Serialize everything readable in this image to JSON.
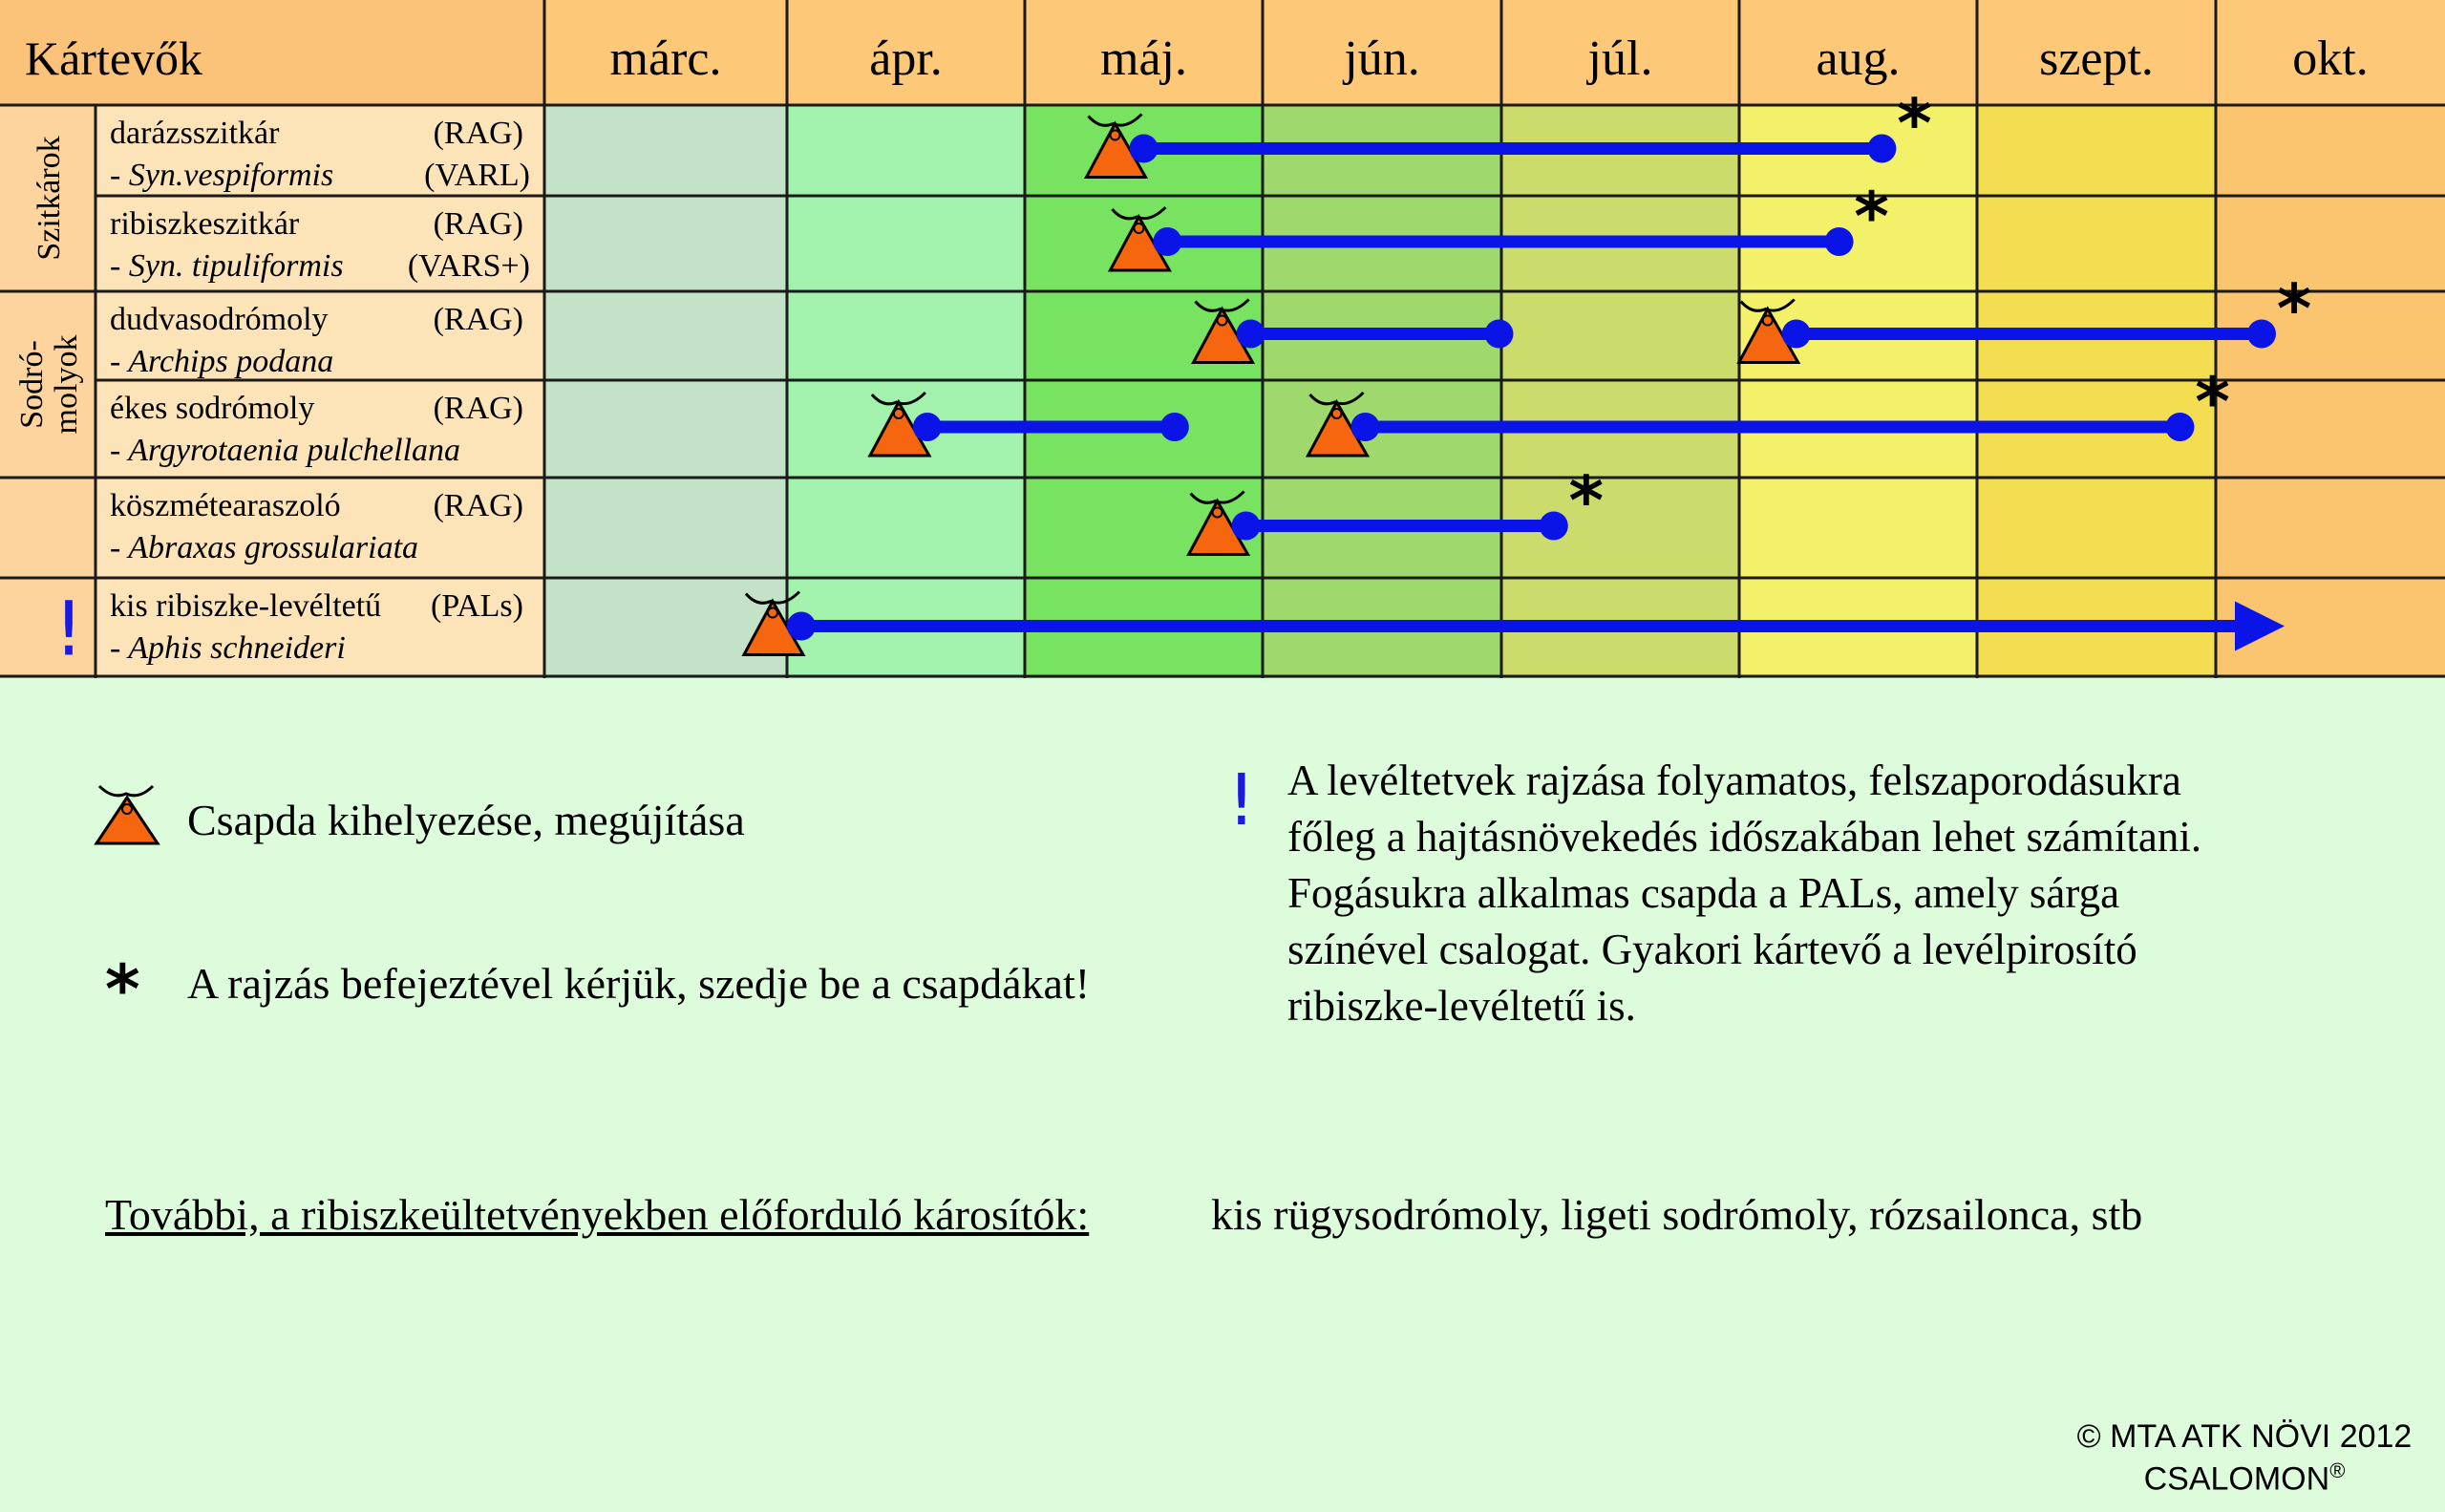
{
  "header": {
    "title": "Kártevők"
  },
  "months": [
    "márc.",
    "ápr.",
    "máj.",
    "jún.",
    "júl.",
    "aug.",
    "szept.",
    "okt."
  ],
  "colors": {
    "header_bg": "#fdc979",
    "left_header_bg": "#fbc27a",
    "group_bg": "#fdd49e",
    "name_bg": "#fde3b8",
    "month_bg": [
      "#c3e2c8",
      "#a2f1ad",
      "#78e261",
      "#9fd86c",
      "#cbdc6c",
      "#f3f16a",
      "#f2de50",
      "#fbc46e"
    ],
    "bar": "#0a14e6",
    "trap": "#f5660e",
    "exclaim": "#1a1ae0"
  },
  "groups": [
    {
      "label": "Szitkárok",
      "rows": [
        0,
        1
      ]
    },
    {
      "label": "Sodró-\nmolyok",
      "rows": [
        2,
        3
      ]
    },
    {
      "label": "",
      "rows": [
        4
      ]
    },
    {
      "label": "!",
      "rows": [
        5
      ]
    }
  ],
  "rows": [
    {
      "name": "darázsszitkár",
      "trap": "(RAG)",
      "latin": "- Syn.vespiformis",
      "trap2": "(VARL)",
      "flights": [
        {
          "start": 2.5,
          "end": 5.6,
          "star": true,
          "arrow": false
        }
      ]
    },
    {
      "name": "ribiszkeszitkár",
      "trap": "(RAG)",
      "latin": "- Syn. tipuliformis",
      "trap2": "(VARS+)",
      "flights": [
        {
          "start": 2.6,
          "end": 5.42,
          "star": true,
          "arrow": false
        }
      ]
    },
    {
      "name": "dudvasodrómoly",
      "trap": "(RAG)",
      "latin": "- Archips podana",
      "trap2": "",
      "flights": [
        {
          "start": 2.95,
          "end": 3.99,
          "star": false,
          "arrow": false
        },
        {
          "start": 5.24,
          "end": 7.2,
          "star": true,
          "arrow": false
        }
      ]
    },
    {
      "name": "ékes sodrómoly",
      "trap": "(RAG)",
      "latin": "- Argyrotaenia pulchellana",
      "trap2": "",
      "flights": [
        {
          "start": 1.59,
          "end": 2.63,
          "star": false,
          "arrow": false
        },
        {
          "start": 3.43,
          "end": 6.85,
          "star": true,
          "arrow": false
        }
      ]
    },
    {
      "name": "köszmétearaszoló",
      "trap": "(RAG)",
      "latin": "- Abraxas grossulariata",
      "trap2": "",
      "flights": [
        {
          "start": 2.93,
          "end": 4.22,
          "star": true,
          "arrow": false
        }
      ]
    },
    {
      "name": "kis ribiszke-levéltetű",
      "trap": "(PALs)",
      "latin": "- Aphis schneideri",
      "trap2": "",
      "flights": [
        {
          "start": 1.06,
          "end": 7.3,
          "star": false,
          "arrow": true
        }
      ]
    }
  ],
  "legend": {
    "trap_label": "Csapda kihelyezése, megújítása",
    "star_symbol": "*",
    "star_label": "A rajzás befejeztével kérjük, szedje be a csapdákat!",
    "exclaim_symbol": "!",
    "note_lines": [
      "A levéltetvek rajzása folyamatos, felszaporodásukra",
      "főleg a hajtásnövekedés időszakában lehet számítani.",
      "Fogásukra alkalmas csapda a PALs, amely sárga",
      "színével csalogat.  Gyakori kártevő a levélpirosító",
      "ribiszke-levéltetű is."
    ]
  },
  "footer": {
    "label": "További, a ribiszkeültetvényekben előforduló károsítók:",
    "value": "kis rügysodrómoly, ligeti sodrómoly, rózsailonca, stb"
  },
  "copyright": {
    "line1": "© MTA ATK NÖVI 2012",
    "line2": "CSALOMON",
    "mark": "®"
  }
}
